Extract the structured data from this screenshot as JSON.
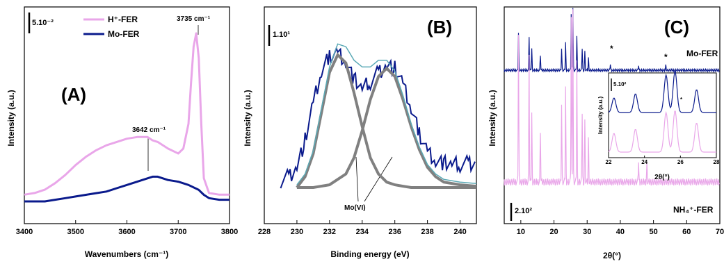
{
  "chart_data": [
    {
      "type": "line",
      "panel_label": "(A)",
      "xlabel": "Wavenumbers (cm⁻¹)",
      "ylabel": "Intensity (a.u.)",
      "xlim": [
        3400,
        3800
      ],
      "xticks": [
        "3400",
        "3500",
        "3600",
        "3700",
        "3800"
      ],
      "scale_bar": "5.10⁻²",
      "legend": {
        "placement": "top-left"
      },
      "annotations": [
        "3735 cm⁻¹",
        "3642 cm⁻¹"
      ],
      "series": [
        {
          "name": "H⁺-FER",
          "color": "#e9a6e9",
          "x": [
            3400,
            3420,
            3440,
            3460,
            3480,
            3500,
            3520,
            3540,
            3560,
            3580,
            3600,
            3620,
            3640,
            3650,
            3660,
            3680,
            3700,
            3710,
            3720,
            3725,
            3730,
            3735,
            3740,
            3745,
            3750,
            3760,
            3780,
            3800
          ],
          "y": [
            0.02,
            0.03,
            0.05,
            0.09,
            0.14,
            0.2,
            0.25,
            0.29,
            0.32,
            0.34,
            0.36,
            0.37,
            0.37,
            0.35,
            0.34,
            0.3,
            0.27,
            0.3,
            0.45,
            0.7,
            0.92,
            1.0,
            0.85,
            0.45,
            0.12,
            0.03,
            0.02,
            0.02
          ]
        },
        {
          "name": "Mo-FER",
          "color": "#0a1a8c",
          "x": [
            3400,
            3420,
            3440,
            3460,
            3480,
            3500,
            3520,
            3540,
            3560,
            3580,
            3600,
            3620,
            3640,
            3650,
            3660,
            3680,
            3700,
            3720,
            3740,
            3750,
            3760,
            3780,
            3800
          ],
          "y": [
            0.0,
            0.0,
            0.0,
            0.01,
            0.02,
            0.03,
            0.04,
            0.05,
            0.06,
            0.08,
            0.1,
            0.12,
            0.14,
            0.15,
            0.15,
            0.13,
            0.12,
            0.1,
            0.07,
            0.04,
            0.02,
            0.01,
            0.01
          ]
        }
      ]
    },
    {
      "type": "line",
      "panel_label": "(B)",
      "xlabel": "Binding energy (eV)",
      "ylabel": "Intensity (a.u.)",
      "xlim": [
        228,
        241
      ],
      "xticks": [
        "228",
        "230",
        "232",
        "234",
        "236",
        "238",
        "240"
      ],
      "scale_bar": "1.10¹",
      "annotations": [
        "Mo(VI)"
      ],
      "series": [
        {
          "color": "#0a1a8c",
          "x": [
            229,
            229.5,
            230,
            230.5,
            231,
            231.5,
            232,
            232.5,
            233,
            233.5,
            234,
            234.5,
            235,
            235.5,
            236,
            236.5,
            237,
            237.5,
            238,
            238.5,
            239,
            239.5,
            240,
            240.5,
            241
          ],
          "y": [
            0.05,
            0.08,
            0.15,
            0.35,
            0.62,
            0.85,
            0.97,
            1.0,
            0.93,
            0.8,
            0.73,
            0.78,
            0.85,
            0.9,
            0.88,
            0.76,
            0.58,
            0.4,
            0.27,
            0.2,
            0.18,
            0.17,
            0.17,
            0.18,
            0.18
          ]
        },
        {
          "color": "#808080",
          "x": [
            230,
            230.5,
            231,
            231.5,
            232,
            232.5,
            233,
            233.5,
            234,
            234.5,
            235,
            235.5,
            236,
            236.5,
            237,
            237.5,
            238,
            238.5,
            239,
            240,
            241
          ],
          "y": [
            0.0,
            0.08,
            0.25,
            0.55,
            0.85,
            0.98,
            0.92,
            0.7,
            0.45,
            0.22,
            0.1,
            0.04,
            0.02,
            0.01,
            0.0,
            0.0,
            0.0,
            0.0,
            0.0,
            0.0,
            0.0
          ]
        },
        {
          "color": "#808080",
          "x": [
            230,
            231,
            232,
            233,
            233.5,
            234,
            234.5,
            235,
            235.5,
            236,
            236.5,
            237,
            237.5,
            238,
            238.5,
            239,
            240,
            241
          ],
          "y": [
            0.0,
            0.0,
            0.02,
            0.1,
            0.22,
            0.42,
            0.65,
            0.82,
            0.88,
            0.82,
            0.65,
            0.45,
            0.28,
            0.15,
            0.08,
            0.04,
            0.02,
            0.01
          ]
        }
      ]
    },
    {
      "type": "line",
      "panel_label": "(C)",
      "xlabel": "2θ(°)",
      "ylabel": "Intensity (a.u.)",
      "xlim": [
        5,
        70
      ],
      "xticks": [
        "10",
        "20",
        "30",
        "40",
        "50",
        "60",
        "70"
      ],
      "scale_bar": "2.10²",
      "annotations": [
        "*",
        "*"
      ],
      "series": [
        {
          "name": "Mo-FER",
          "color": "#0a1a8c",
          "peaks_x": [
            9.3,
            12.5,
            13.3,
            15.9,
            22.3,
            23.5,
            25.2,
            25.7,
            26.9,
            28.5,
            29.3,
            30.4,
            37.0,
            45.5,
            53.7
          ],
          "peaks_y": [
            0.6,
            0.55,
            0.35,
            0.25,
            0.35,
            0.45,
            0.9,
            1.0,
            0.55,
            0.35,
            0.3,
            0.2,
            0.1,
            0.08,
            0.08
          ]
        },
        {
          "name": "NH₄⁺-FER",
          "color": "#e9a6e9",
          "peaks_x": [
            9.3,
            12.5,
            13.3,
            15.9,
            22.3,
            23.5,
            25.2,
            25.7,
            26.9,
            28.5,
            29.3,
            30.4,
            45.5,
            48.0
          ],
          "peaks_y": [
            0.85,
            0.75,
            0.4,
            0.3,
            0.45,
            0.55,
            0.95,
            1.0,
            0.7,
            0.4,
            0.35,
            0.25,
            0.12,
            0.1
          ]
        }
      ],
      "inset": {
        "xlabel": "2θ(°)",
        "ylabel": "Intensity (a.u.)",
        "xlim": [
          22,
          28
        ],
        "xticks": [
          "22",
          "24",
          "26",
          "28"
        ],
        "scale_bar": "5.10²",
        "annotations": [
          "*"
        ]
      }
    }
  ]
}
